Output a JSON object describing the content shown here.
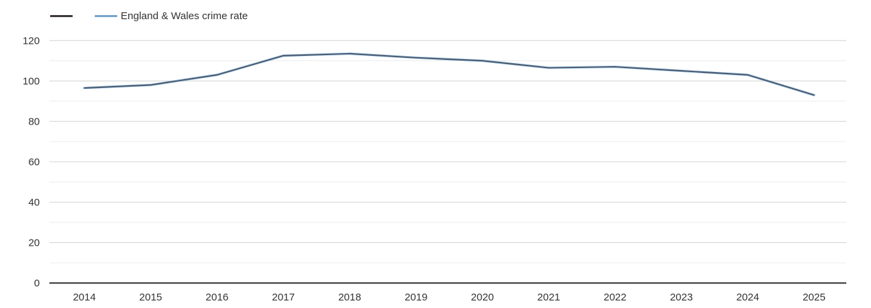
{
  "legend": {
    "series1_label": "",
    "series2_label": "England & Wales crime rate"
  },
  "chart_data": {
    "type": "line",
    "title": "",
    "xlabel": "",
    "ylabel": "",
    "x": [
      2014,
      2015,
      2016,
      2017,
      2018,
      2019,
      2020,
      2021,
      2022,
      2023,
      2024,
      2025
    ],
    "series": [
      {
        "name": "",
        "color": "#3f383c",
        "values": [
          96.5,
          98,
          103,
          112.5,
          113.5,
          111.5,
          110,
          106.5,
          107,
          105,
          103,
          93
        ]
      },
      {
        "name": "England & Wales crime rate",
        "color": "#78a4c9",
        "values": [
          96.5,
          98,
          103,
          112.5,
          113.5,
          111.5,
          110,
          106.5,
          107,
          105,
          103,
          93
        ]
      }
    ],
    "ylim": [
      0,
      120
    ],
    "yticks_major": [
      0,
      20,
      40,
      60,
      80,
      100,
      120
    ],
    "yticks_minor_step": 10,
    "grid": true,
    "legend_position": "top-left",
    "colors": {
      "axis": "#2f2f2f",
      "grid_major": "#d4d4d4",
      "grid_minor": "#ececec",
      "text": "#333333"
    }
  }
}
